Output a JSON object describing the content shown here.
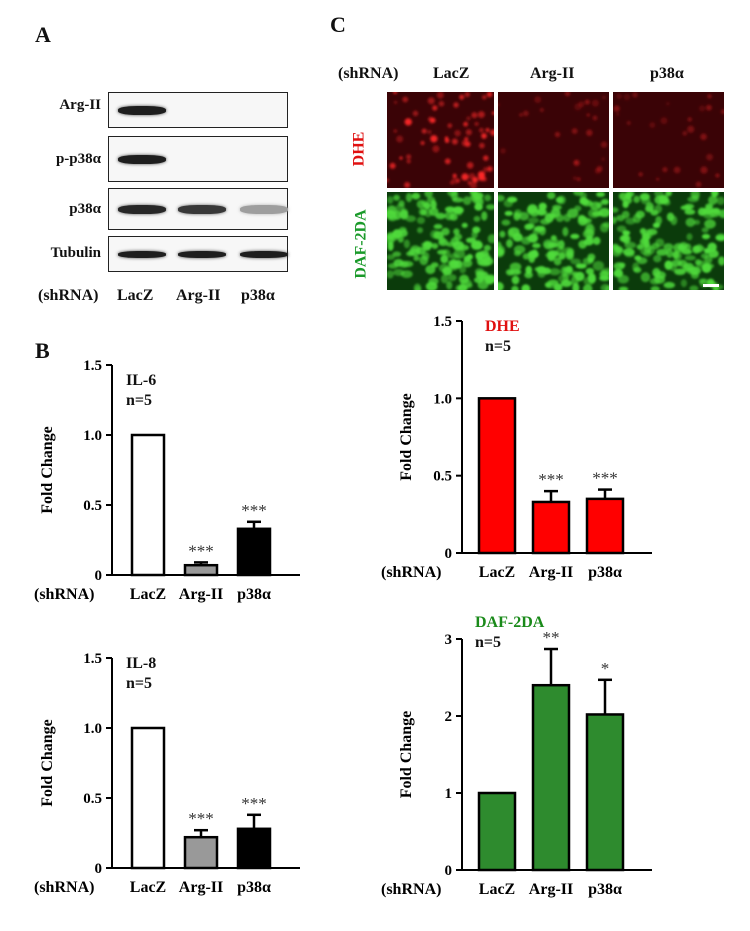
{
  "panels": {
    "A": "A",
    "B": "B",
    "C": "C"
  },
  "western_blot": {
    "rows": [
      "Arg-II",
      "p-p38α",
      "p38α",
      "Tubulin"
    ],
    "row_label": "(shRNA)",
    "lanes": [
      "LacZ",
      "Arg-II",
      "p38α"
    ],
    "band_intensity": [
      [
        1.0,
        0.0,
        0.0
      ],
      [
        1.0,
        0.0,
        0.0
      ],
      [
        0.95,
        0.85,
        0.25
      ],
      [
        1.0,
        1.0,
        1.0
      ]
    ]
  },
  "microscopy": {
    "row_label": "(shRNA)",
    "columns": [
      "LacZ",
      "Arg-II",
      "p38α"
    ],
    "rows": [
      {
        "label": "DHE",
        "color": "#e01010"
      },
      {
        "label": "DAF-2DA",
        "color": "#1a9a2a"
      }
    ]
  },
  "chart_data": [
    {
      "id": "il6",
      "type": "bar",
      "categories": [
        "LacZ",
        "Arg-II",
        "p38α"
      ],
      "values": [
        1.0,
        0.07,
        0.33
      ],
      "errors": [
        0,
        0.02,
        0.05
      ],
      "significance": [
        "",
        "***",
        "***"
      ],
      "fills": [
        "#ffffff",
        "#999999",
        "#000000"
      ],
      "ylabel": "Fold Change",
      "xlabel_prefix": "(shRNA)",
      "annotation": [
        "IL-6",
        "n=5"
      ],
      "yticks": [
        "0",
        "0.5",
        "1.0",
        "1.5"
      ],
      "ylim": [
        0,
        1.5
      ]
    },
    {
      "id": "il8",
      "type": "bar",
      "categories": [
        "LacZ",
        "Arg-II",
        "p38α"
      ],
      "values": [
        1.0,
        0.22,
        0.28
      ],
      "errors": [
        0,
        0.05,
        0.1
      ],
      "significance": [
        "",
        "***",
        "***"
      ],
      "fills": [
        "#ffffff",
        "#999999",
        "#000000"
      ],
      "ylabel": "Fold Change",
      "xlabel_prefix": "(shRNA)",
      "annotation": [
        "IL-8",
        "n=5"
      ],
      "yticks": [
        "0",
        "0.5",
        "1.0",
        "1.5"
      ],
      "ylim": [
        0,
        1.5
      ]
    },
    {
      "id": "dhe",
      "type": "bar",
      "categories": [
        "LacZ",
        "Arg-II",
        "p38α"
      ],
      "values": [
        1.0,
        0.33,
        0.35
      ],
      "errors": [
        0,
        0.07,
        0.06
      ],
      "significance": [
        "",
        "***",
        "***"
      ],
      "fills": [
        "#ff0000",
        "#ff0000",
        "#ff0000"
      ],
      "ylabel": "Fold Change",
      "xlabel_prefix": "(shRNA)",
      "annotation": [
        "DHE",
        "n=5"
      ],
      "annotation_color": "#e01010",
      "yticks": [
        "0",
        "0.5",
        "1.0",
        "1.5"
      ],
      "ylim": [
        0,
        1.5
      ]
    },
    {
      "id": "daf",
      "type": "bar",
      "categories": [
        "LacZ",
        "Arg-II",
        "p38α"
      ],
      "values": [
        1.0,
        2.4,
        2.02
      ],
      "errors": [
        0,
        0.47,
        0.45
      ],
      "significance": [
        "",
        "**",
        "*"
      ],
      "fills": [
        "#2e8b2e",
        "#2e8b2e",
        "#2e8b2e"
      ],
      "ylabel": "Fold Change",
      "xlabel_prefix": "(shRNA)",
      "annotation": [
        "DAF-2DA",
        "n=5"
      ],
      "annotation_color": "#1a8a1a",
      "yticks": [
        "0",
        "1",
        "2",
        "3"
      ],
      "ylim": [
        0,
        3
      ]
    }
  ]
}
